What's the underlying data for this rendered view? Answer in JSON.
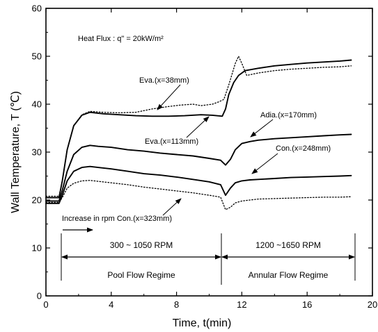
{
  "chart_data": {
    "type": "line",
    "title": "",
    "xlabel": "Time, t(min)",
    "ylabel": "Wall Temperature, T (℃)",
    "xlim": [
      0,
      20
    ],
    "ylim": [
      0,
      60
    ],
    "xticks": [
      0,
      4,
      8,
      12,
      16,
      20
    ],
    "yticks": [
      0,
      10,
      20,
      30,
      40,
      50,
      60
    ],
    "grid": false,
    "series": [
      {
        "name": "Eva.(x=38mm)",
        "style": "dotted",
        "x": [
          0,
          0.8,
          1.0,
          1.3,
          1.7,
          2.2,
          2.7,
          3.5,
          4.5,
          5.5,
          6.5,
          7.5,
          8.2,
          9.0,
          9.5,
          10.2,
          10.6,
          10.9,
          11.2,
          11.6,
          11.8,
          12.0,
          12.3,
          13,
          14,
          15,
          16,
          17,
          18,
          18.7
        ],
        "y": [
          20.8,
          20.8,
          24,
          30.5,
          35.5,
          37.8,
          38.5,
          38.3,
          38.2,
          38.3,
          39,
          39.5,
          39.8,
          40,
          39.7,
          40,
          40.5,
          41,
          44,
          48.5,
          50,
          48.5,
          46,
          46.5,
          47,
          47.3,
          47.5,
          47.7,
          47.8,
          48
        ]
      },
      {
        "name": "Eva.(x=113mm)",
        "style": "solid",
        "x": [
          0,
          0.8,
          1.0,
          1.3,
          1.7,
          2.2,
          2.7,
          3.5,
          4.5,
          5.5,
          6.5,
          7.5,
          8.5,
          9.5,
          10.2,
          10.8,
          11.0,
          11.2,
          11.5,
          11.8,
          12.2,
          13,
          14,
          15,
          16,
          17,
          18,
          18.7
        ],
        "y": [
          20.5,
          20.5,
          24,
          30.5,
          35.5,
          37.7,
          38.3,
          38,
          37.8,
          37.6,
          37.5,
          37.5,
          37.6,
          37.8,
          37.7,
          37.5,
          39,
          42,
          44.5,
          46,
          47,
          47.5,
          48,
          48.3,
          48.6,
          48.8,
          49,
          49.2
        ]
      },
      {
        "name": "Adia.(x=170mm)",
        "style": "solid",
        "x": [
          0,
          0.8,
          1.0,
          1.3,
          1.7,
          2.2,
          2.7,
          3.2,
          4,
          5,
          6,
          7,
          8,
          9,
          10,
          10.7,
          11.0,
          11.3,
          11.6,
          12,
          12.5,
          13,
          14,
          15,
          16,
          17,
          18,
          18.7
        ],
        "y": [
          19.8,
          19.8,
          22,
          26,
          29.5,
          31,
          31.4,
          31.2,
          31,
          30.5,
          30.2,
          29.8,
          29.5,
          29.2,
          28.7,
          28.3,
          27.3,
          28.5,
          30.5,
          31.8,
          32.2,
          32.5,
          32.8,
          33,
          33.2,
          33.4,
          33.6,
          33.7
        ]
      },
      {
        "name": "Con.(x=248mm)",
        "style": "solid",
        "x": [
          0,
          0.8,
          1.0,
          1.3,
          1.7,
          2.2,
          2.7,
          3.2,
          4,
          5,
          6,
          7,
          8,
          9,
          10,
          10.7,
          11.0,
          11.3,
          11.6,
          12,
          12.5,
          13,
          14,
          15,
          16,
          17,
          18,
          18.7
        ],
        "y": [
          19.3,
          19.3,
          21,
          24,
          26,
          26.8,
          27,
          26.8,
          26.5,
          26,
          25.5,
          25.2,
          24.8,
          24.3,
          23.8,
          23.2,
          21,
          22.5,
          23.6,
          24,
          24.2,
          24.3,
          24.5,
          24.7,
          24.8,
          24.9,
          25,
          25.1
        ]
      },
      {
        "name": "Con.(x=323mm)",
        "style": "dotted",
        "x": [
          0,
          0.8,
          1.0,
          1.3,
          1.7,
          2.2,
          2.7,
          3.2,
          4,
          5,
          6,
          7,
          8,
          9,
          10,
          10.7,
          11.0,
          11.3,
          11.6,
          12,
          12.5,
          13,
          14,
          15,
          16,
          17,
          18,
          18.7
        ],
        "y": [
          19.5,
          19.5,
          20.5,
          22.5,
          23.5,
          24,
          24.1,
          23.9,
          23.6,
          23.2,
          22.7,
          22.3,
          21.9,
          21.5,
          21,
          20.6,
          18,
          18.5,
          19.4,
          19.8,
          20,
          20.2,
          20.3,
          20.4,
          20.5,
          20.6,
          20.6,
          20.7
        ]
      }
    ],
    "annotations": {
      "heat_flux": "Heat Flux : q\" = 20kW/m²",
      "label_eva38": "Eva.(x=38mm)",
      "label_eva113": "Eva.(x=113mm)",
      "label_adia": "Adia.(x=170mm)",
      "label_con248": "Con.(x=248mm)",
      "label_con323": "Increase in rpm  Con.(x=323mm)",
      "rpm_left": "300 ~ 1050 RPM",
      "rpm_right": "1200 ~1650 RPM",
      "regime_left": "Pool Flow Regime",
      "regime_right": "Annular Flow Regime"
    }
  }
}
